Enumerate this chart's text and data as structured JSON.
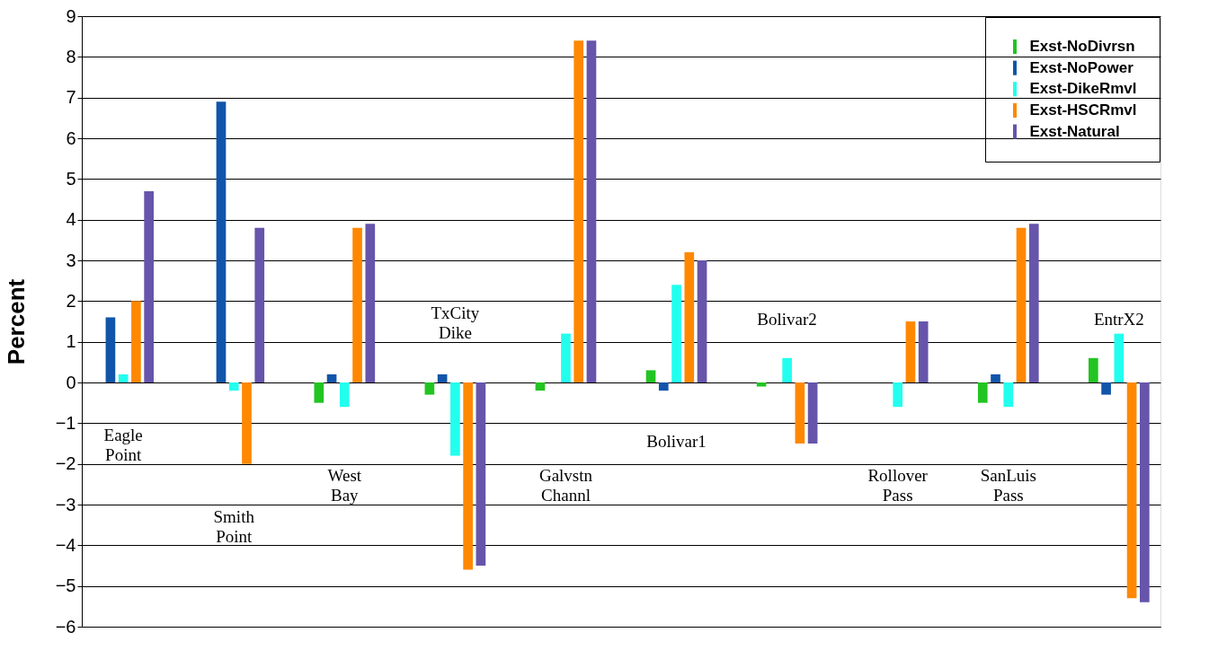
{
  "chart_data": {
    "type": "bar",
    "ylabel": "Percent",
    "categories": [
      "Eagle Point",
      "Smith Point",
      "West Bay",
      "TxCity Dike",
      "Galvstn Channl",
      "Bolivar1",
      "Bolivar2",
      "Rollover Pass",
      "SanLuis Pass",
      "EntrX2"
    ],
    "series": [
      {
        "name": "Exst-NoDivrsn",
        "color": "#22c422",
        "values": [
          null,
          null,
          -0.5,
          -0.3,
          -0.2,
          0.3,
          -0.1,
          null,
          -0.5,
          0.6
        ]
      },
      {
        "name": "Exst-NoPower",
        "color": "#1155aa",
        "values": [
          1.6,
          6.9,
          0.2,
          0.2,
          null,
          -0.2,
          null,
          null,
          0.2,
          -0.3
        ]
      },
      {
        "name": "Exst-DikeRmvl",
        "color": "#22ffee",
        "values": [
          0.2,
          -0.2,
          -0.6,
          -1.8,
          1.2,
          2.4,
          0.6,
          -0.6,
          -0.6,
          1.2
        ]
      },
      {
        "name": "Exst-HSCRmvl",
        "color": "#ff8800",
        "values": [
          2.0,
          -2.0,
          3.8,
          -4.6,
          8.4,
          3.2,
          -1.5,
          1.5,
          3.8,
          -5.3
        ]
      },
      {
        "name": "Exst-Natural",
        "color": "#6655aa",
        "values": [
          4.7,
          3.8,
          3.9,
          -4.5,
          8.4,
          3.0,
          -1.5,
          1.5,
          3.9,
          -5.4
        ]
      }
    ],
    "ylim": [
      -6,
      9
    ],
    "yticks": [
      -6,
      -5,
      -4,
      -3,
      -2,
      -1,
      0,
      1,
      2,
      3,
      4,
      5,
      6,
      7,
      8,
      9
    ],
    "grid": "y",
    "legend": "top right",
    "tick_labels": "y"
  }
}
